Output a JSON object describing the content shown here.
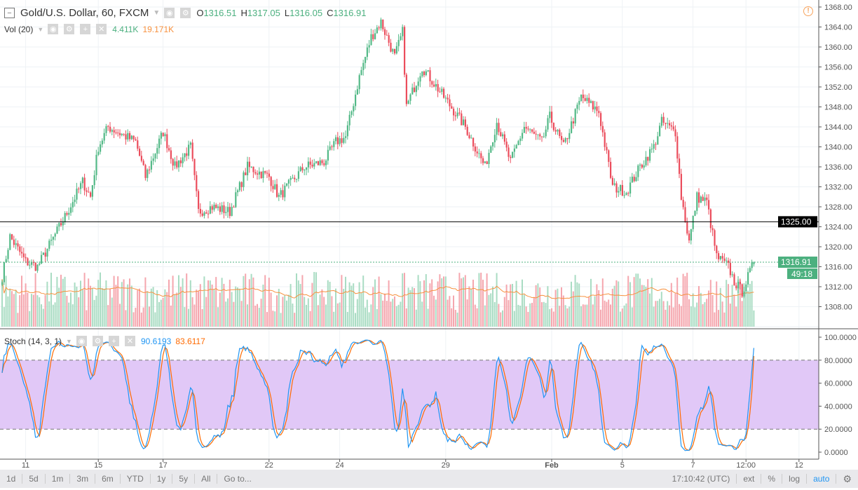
{
  "header": {
    "symbol": "Gold/U.S. Dollar, 60, FXCM",
    "o_label": "O",
    "o": "1316.51",
    "h_label": "H",
    "h": "1317.05",
    "l_label": "L",
    "l": "1316.05",
    "c_label": "C",
    "c": "1316.91"
  },
  "volume": {
    "label": "Vol (20)",
    "value": "4.411K",
    "ma": "19.171K"
  },
  "stoch": {
    "label": "Stoch (14, 3, 1)",
    "k": "90.6193",
    "d": "83.6117"
  },
  "price_scale": {
    "current": "1316.91",
    "countdown": "49:18",
    "line_label": "1325.00"
  },
  "toolbar": {
    "ranges": [
      "1d",
      "5d",
      "1m",
      "3m",
      "6m",
      "YTD",
      "1y",
      "5y",
      "All",
      "Go to..."
    ],
    "time": "17:10:42 (UTC)",
    "ext": "ext",
    "percent": "%",
    "log": "log",
    "auto": "auto"
  },
  "colors": {
    "up": "#53b987",
    "down": "#eb4d5c",
    "stoch_k": "#2196f3",
    "stoch_d": "#ff6a00",
    "band": "#e1c8f7"
  },
  "chart_data": {
    "type": "candlestick",
    "title": "Gold/U.S. Dollar, 60, FXCM",
    "ylim": [
      1304,
      1368
    ],
    "yticks": [
      1304,
      1308,
      1312,
      1316,
      1320,
      1324,
      1328,
      1332,
      1336,
      1340,
      1344,
      1348,
      1352,
      1356,
      1360,
      1364,
      1368
    ],
    "xticks": [
      {
        "bar": 12,
        "label": "11"
      },
      {
        "bar": 49,
        "label": "15"
      },
      {
        "bar": 82,
        "label": "17"
      },
      {
        "bar": 136,
        "label": "22"
      },
      {
        "bar": 172,
        "label": "24"
      },
      {
        "bar": 226,
        "label": "29"
      },
      {
        "bar": 280,
        "label": "Feb"
      },
      {
        "bar": 316,
        "label": "5"
      },
      {
        "bar": 352,
        "label": "7"
      },
      {
        "bar": 379,
        "label": "12:00"
      },
      {
        "bar": 406,
        "label": "12"
      }
    ],
    "horizontal_line": 1325,
    "close_path": [
      [
        0,
        1314
      ],
      [
        4,
        1322
      ],
      [
        12,
        1317
      ],
      [
        18,
        1316
      ],
      [
        32,
        1326
      ],
      [
        41,
        1333
      ],
      [
        45,
        1330
      ],
      [
        49,
        1340
      ],
      [
        54,
        1344
      ],
      [
        68,
        1341
      ],
      [
        73,
        1334
      ],
      [
        82,
        1343
      ],
      [
        88,
        1336
      ],
      [
        96,
        1340
      ],
      [
        100,
        1327
      ],
      [
        107,
        1328
      ],
      [
        116,
        1327
      ],
      [
        125,
        1336
      ],
      [
        136,
        1334
      ],
      [
        141,
        1330
      ],
      [
        154,
        1336
      ],
      [
        164,
        1337
      ],
      [
        170,
        1341
      ],
      [
        175,
        1342
      ],
      [
        182,
        1354
      ],
      [
        188,
        1362
      ],
      [
        193,
        1365
      ],
      [
        200,
        1358
      ],
      [
        204,
        1363
      ],
      [
        206,
        1348
      ],
      [
        214,
        1356
      ],
      [
        225,
        1350
      ],
      [
        236,
        1344
      ],
      [
        246,
        1336
      ],
      [
        252,
        1345
      ],
      [
        259,
        1337
      ],
      [
        266,
        1344
      ],
      [
        275,
        1341
      ],
      [
        279,
        1346
      ],
      [
        286,
        1340
      ],
      [
        295,
        1350
      ],
      [
        304,
        1347
      ],
      [
        311,
        1332
      ],
      [
        318,
        1331
      ],
      [
        325,
        1336
      ],
      [
        332,
        1340
      ],
      [
        336,
        1345
      ],
      [
        343,
        1343
      ],
      [
        346,
        1330
      ],
      [
        350,
        1321
      ],
      [
        354,
        1330
      ],
      [
        359,
        1329
      ],
      [
        364,
        1318
      ],
      [
        370,
        1316
      ],
      [
        373,
        1313
      ],
      [
        377,
        1311
      ],
      [
        383,
        1316.91
      ]
    ],
    "stoch_ylim": [
      0,
      100
    ],
    "stoch_yticks": [
      "0.0000",
      "20.0000",
      "40.0000",
      "60.0000",
      "80.0000",
      "100.0000"
    ],
    "stoch_band": [
      20,
      80
    ]
  }
}
